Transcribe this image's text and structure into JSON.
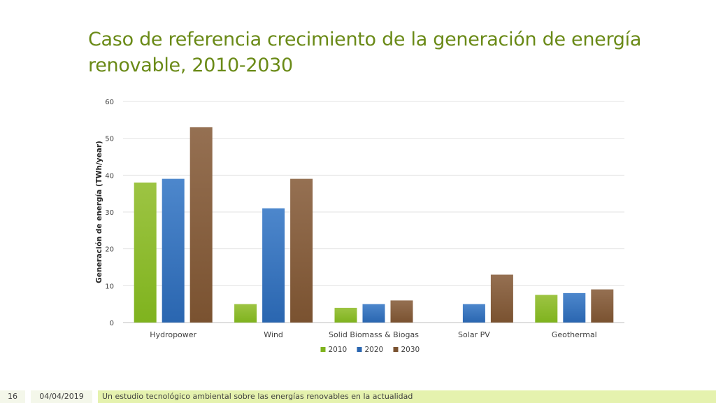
{
  "slide": {
    "title": "Caso de referencia crecimiento de la generación de energía renovable, 2010-2030"
  },
  "footer": {
    "page_number": "16",
    "date": "04/04/2019",
    "text": "Un estudio tecnológico ambiental sobre las energías renovables en la actualidad"
  },
  "chart_data": {
    "type": "bar",
    "title": "",
    "xlabel": "",
    "ylabel": "Generación de energía (TWh/year)",
    "ylim": [
      0,
      60
    ],
    "yticks": [
      0,
      10,
      20,
      30,
      40,
      50,
      60
    ],
    "grid": true,
    "legend": "bottom",
    "categories": [
      "Hydropower",
      "Wind",
      "Solid Biomass & Biogas",
      "Solar PV",
      "Geothermal"
    ],
    "series": [
      {
        "name": "2010",
        "values": [
          38,
          5,
          4,
          0,
          7.5
        ],
        "color": "#7fb31e",
        "color_light": "#9dc443"
      },
      {
        "name": "2020",
        "values": [
          39,
          31,
          5,
          5,
          8
        ],
        "color": "#2a66b0",
        "color_light": "#4d87cc"
      },
      {
        "name": "2030",
        "values": [
          53,
          39,
          6,
          13,
          9
        ],
        "color": "#7a5230",
        "color_light": "#957052"
      }
    ]
  }
}
